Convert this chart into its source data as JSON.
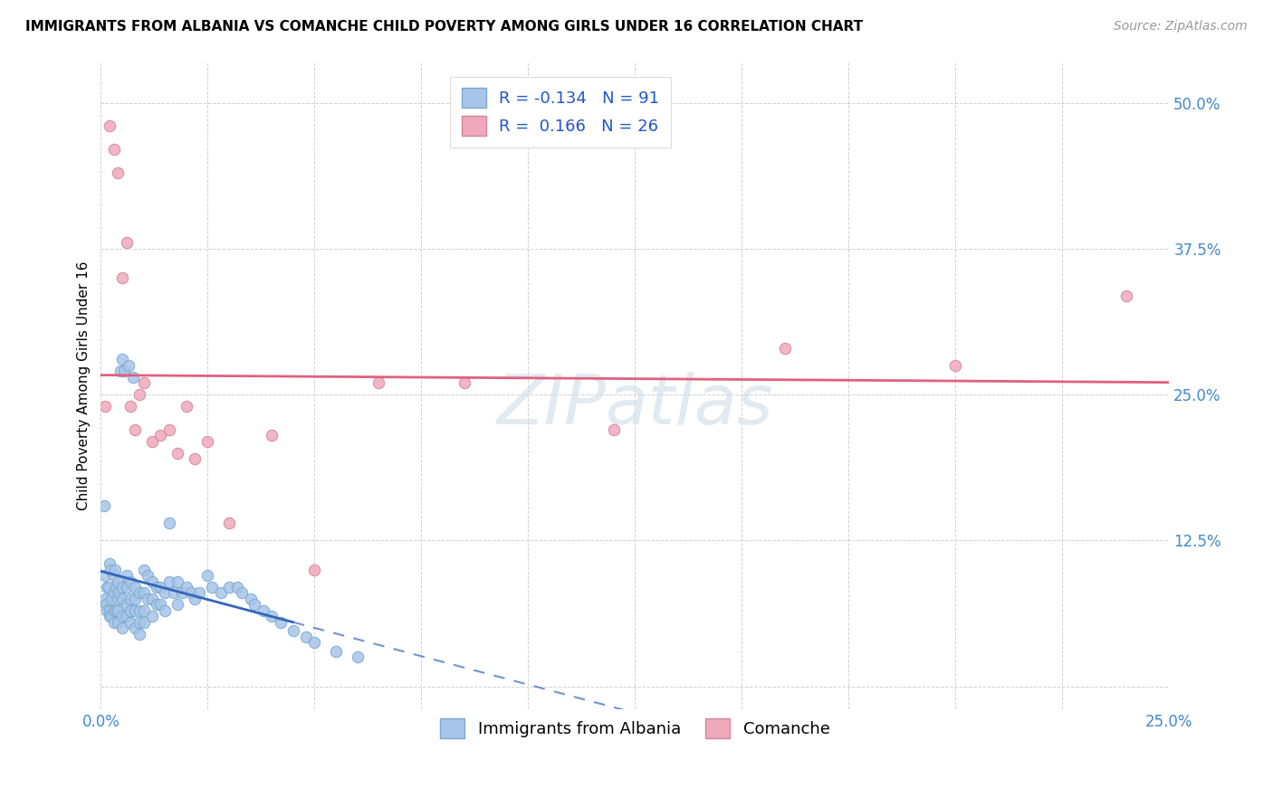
{
  "title": "IMMIGRANTS FROM ALBANIA VS COMANCHE CHILD POVERTY AMONG GIRLS UNDER 16 CORRELATION CHART",
  "source": "Source: ZipAtlas.com",
  "ylabel": "Child Poverty Among Girls Under 16",
  "r_albania": -0.134,
  "n_albania": 91,
  "r_comanche": 0.166,
  "n_comanche": 26,
  "color_albania": "#a8c4e8",
  "color_comanche": "#f0a8bc",
  "line_color_albania": "#3366bb",
  "line_color_comanche": "#e06080",
  "xlim": [
    0.0,
    0.25
  ],
  "ylim": [
    -0.02,
    0.535
  ],
  "watermark": "ZIPatlas",
  "albania_x": [
    0.0008,
    0.001,
    0.001,
    0.0012,
    0.0015,
    0.0015,
    0.0018,
    0.002,
    0.002,
    0.002,
    0.0022,
    0.0025,
    0.0025,
    0.003,
    0.003,
    0.003,
    0.003,
    0.0032,
    0.0035,
    0.0035,
    0.004,
    0.004,
    0.004,
    0.004,
    0.0042,
    0.0045,
    0.005,
    0.005,
    0.005,
    0.005,
    0.005,
    0.0055,
    0.006,
    0.006,
    0.006,
    0.006,
    0.0065,
    0.007,
    0.007,
    0.007,
    0.007,
    0.0075,
    0.008,
    0.008,
    0.008,
    0.008,
    0.009,
    0.009,
    0.009,
    0.009,
    0.01,
    0.01,
    0.01,
    0.01,
    0.011,
    0.011,
    0.012,
    0.012,
    0.012,
    0.013,
    0.013,
    0.014,
    0.014,
    0.015,
    0.015,
    0.016,
    0.016,
    0.017,
    0.018,
    0.018,
    0.019,
    0.02,
    0.021,
    0.022,
    0.023,
    0.025,
    0.026,
    0.028,
    0.03,
    0.032,
    0.033,
    0.035,
    0.036,
    0.038,
    0.04,
    0.042,
    0.045,
    0.048,
    0.05,
    0.055,
    0.06
  ],
  "albania_y": [
    0.155,
    0.095,
    0.075,
    0.07,
    0.085,
    0.065,
    0.085,
    0.065,
    0.06,
    0.105,
    0.1,
    0.06,
    0.075,
    0.095,
    0.08,
    0.065,
    0.055,
    0.1,
    0.085,
    0.065,
    0.09,
    0.075,
    0.065,
    0.055,
    0.08,
    0.27,
    0.085,
    0.075,
    0.06,
    0.05,
    0.28,
    0.27,
    0.095,
    0.085,
    0.07,
    0.06,
    0.275,
    0.09,
    0.075,
    0.065,
    0.055,
    0.265,
    0.085,
    0.075,
    0.065,
    0.05,
    0.08,
    0.065,
    0.055,
    0.045,
    0.1,
    0.08,
    0.065,
    0.055,
    0.095,
    0.075,
    0.09,
    0.075,
    0.06,
    0.085,
    0.07,
    0.085,
    0.07,
    0.08,
    0.065,
    0.09,
    0.14,
    0.08,
    0.09,
    0.07,
    0.08,
    0.085,
    0.08,
    0.075,
    0.08,
    0.095,
    0.085,
    0.08,
    0.085,
    0.085,
    0.08,
    0.075,
    0.07,
    0.065,
    0.06,
    0.055,
    0.048,
    0.042,
    0.038,
    0.03,
    0.025
  ],
  "comanche_x": [
    0.001,
    0.002,
    0.003,
    0.004,
    0.005,
    0.006,
    0.007,
    0.008,
    0.009,
    0.01,
    0.012,
    0.014,
    0.016,
    0.018,
    0.02,
    0.022,
    0.025,
    0.03,
    0.04,
    0.05,
    0.065,
    0.085,
    0.12,
    0.16,
    0.2,
    0.24
  ],
  "comanche_y": [
    0.24,
    0.48,
    0.46,
    0.44,
    0.35,
    0.38,
    0.24,
    0.22,
    0.25,
    0.26,
    0.21,
    0.215,
    0.22,
    0.2,
    0.24,
    0.195,
    0.21,
    0.14,
    0.215,
    0.1,
    0.26,
    0.26,
    0.22,
    0.29,
    0.275,
    0.335
  ]
}
